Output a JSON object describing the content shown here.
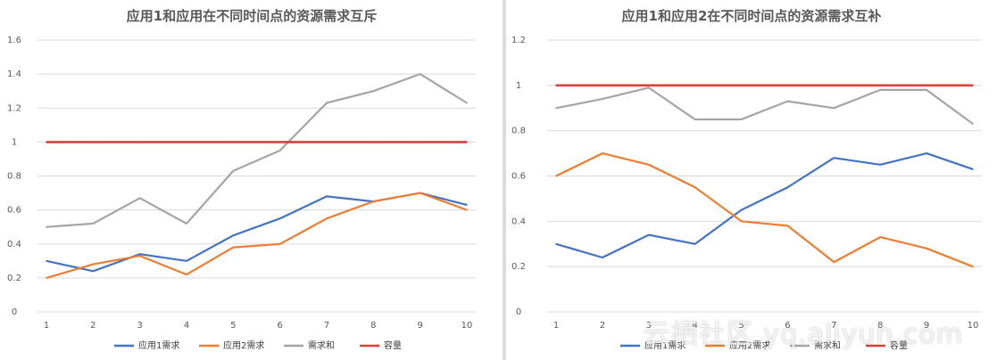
{
  "colors": {
    "demand1": "#4472c4",
    "demand2": "#ed7d31",
    "sum": "#a5a5a5",
    "capacity": "#d9413a",
    "grid": "#d9d9d9",
    "text": "#595959"
  },
  "watermark": "云栖社区 yq.aliyun.com",
  "chart_data": [
    {
      "type": "line",
      "title": "应用1和应用在不同时间点的资源需求互斥",
      "categories": [
        "1",
        "2",
        "3",
        "4",
        "5",
        "6",
        "7",
        "8",
        "9",
        "10"
      ],
      "ylim": [
        0,
        1.6
      ],
      "yticks": [
        "0",
        "0.2",
        "0.4",
        "0.6",
        "0.8",
        "1",
        "1.2",
        "1.4",
        "1.6"
      ],
      "grid": true,
      "legend_position": "bottom",
      "series": [
        {
          "name": "应用1需求",
          "color_key": "demand1",
          "values": [
            0.3,
            0.24,
            0.34,
            0.3,
            0.45,
            0.55,
            0.68,
            0.65,
            0.7,
            0.63
          ]
        },
        {
          "name": "应用2需求",
          "color_key": "demand2",
          "values": [
            0.2,
            0.28,
            0.33,
            0.22,
            0.38,
            0.4,
            0.55,
            0.65,
            0.7,
            0.6
          ]
        },
        {
          "name": "需求和",
          "color_key": "sum",
          "values": [
            0.5,
            0.52,
            0.67,
            0.52,
            0.83,
            0.95,
            1.23,
            1.3,
            1.4,
            1.23
          ]
        },
        {
          "name": "容量",
          "color_key": "capacity",
          "values": [
            1,
            1,
            1,
            1,
            1,
            1,
            1,
            1,
            1,
            1
          ]
        }
      ]
    },
    {
      "type": "line",
      "title": "应用1和应用2在不同时间点的资源需求互补",
      "categories": [
        "1",
        "2",
        "3",
        "4",
        "5",
        "6",
        "7",
        "8",
        "9",
        "10"
      ],
      "ylim": [
        0,
        1.2
      ],
      "yticks": [
        "0",
        "0.2",
        "0.4",
        "0.6",
        "0.8",
        "1",
        "1.2"
      ],
      "grid": true,
      "legend_position": "bottom",
      "series": [
        {
          "name": "应用1需求",
          "color_key": "demand1",
          "values": [
            0.3,
            0.24,
            0.34,
            0.3,
            0.45,
            0.55,
            0.68,
            0.65,
            0.7,
            0.63
          ]
        },
        {
          "name": "应用2需求",
          "color_key": "demand2",
          "values": [
            0.6,
            0.7,
            0.65,
            0.55,
            0.4,
            0.38,
            0.22,
            0.33,
            0.28,
            0.2
          ]
        },
        {
          "name": "需求和",
          "color_key": "sum",
          "values": [
            0.9,
            0.94,
            0.99,
            0.85,
            0.85,
            0.93,
            0.9,
            0.98,
            0.98,
            0.83
          ]
        },
        {
          "name": "容量",
          "color_key": "capacity",
          "values": [
            1,
            1,
            1,
            1,
            1,
            1,
            1,
            1,
            1,
            1
          ]
        }
      ]
    }
  ]
}
